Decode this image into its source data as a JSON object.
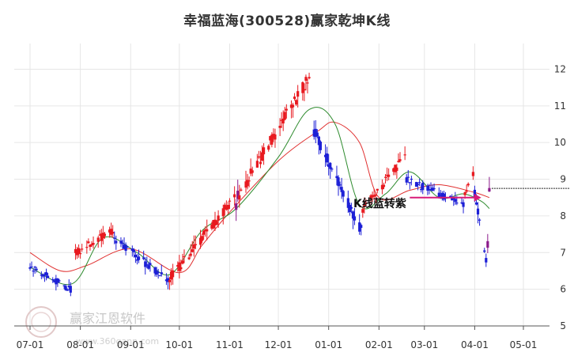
{
  "title": "幸福蓝海(300528)赢家乾坤K线",
  "watermark": {
    "text": "赢家江恩软件",
    "url": "www.360gann.com"
  },
  "colors": {
    "up": "#e8191f",
    "down": "#1c1fd6",
    "turn": "#8b1a8b",
    "ma_short": "#2e8b2e",
    "ma_long": "#e03030",
    "arrow": "#d81b79",
    "grid": "#e6e6e6"
  },
  "chart_data": {
    "type": "candlestick",
    "title": "幸福蓝海(300528)赢家乾坤K线",
    "x_ticks": [
      "07-01",
      "08-01",
      "09-01",
      "10-01",
      "11-01",
      "12-01",
      "01-01",
      "02-01",
      "03-01",
      "04-01",
      "05-01"
    ],
    "y_ticks": [
      5,
      6,
      7,
      8,
      9,
      10,
      11,
      12
    ],
    "ylim": [
      5,
      12.7
    ],
    "grid": true,
    "annotation": "K线蓝转紫",
    "reference_level": 8.75,
    "segments": [
      {
        "color": "down",
        "from": "07-01",
        "to": "07-26",
        "start": 6.65,
        "end": 6.0
      },
      {
        "color": "turn",
        "from": "07-27",
        "to": "07-28",
        "start": 6.2,
        "end": 7.1
      },
      {
        "color": "up",
        "from": "07-29",
        "to": "08-21",
        "start": 7.0,
        "end": 7.6
      },
      {
        "color": "down",
        "from": "08-22",
        "to": "09-24",
        "start": 7.4,
        "end": 6.2
      },
      {
        "color": "up",
        "from": "09-25",
        "to": "11-04",
        "start": 6.3,
        "end": 8.5
      },
      {
        "color": "turn",
        "from": "11-05",
        "to": "11-06",
        "start": 8.3,
        "end": 8.6
      },
      {
        "color": "up",
        "from": "11-07",
        "to": "12-20",
        "start": 8.6,
        "end": 11.8
      },
      {
        "color": "down",
        "from": "12-21",
        "to": "01-21",
        "start": 10.5,
        "end": 7.6
      },
      {
        "color": "up",
        "from": "01-22",
        "to": "02-17",
        "start": 8.2,
        "end": 9.6
      },
      {
        "color": "down",
        "from": "02-18",
        "to": "03-25",
        "start": 9.0,
        "end": 8.3
      },
      {
        "color": "up",
        "from": "03-26",
        "to": "03-31",
        "start": 8.6,
        "end": 9.1
      },
      {
        "color": "down",
        "from": "04-01",
        "to": "04-08",
        "start": 8.6,
        "end": 6.85
      },
      {
        "color": "turn",
        "from": "04-09",
        "to": "04-10",
        "start": 7.2,
        "end": 8.75
      }
    ],
    "ma_short_anchors": [
      [
        "07-01",
        6.6
      ],
      [
        "07-27",
        6.15
      ],
      [
        "08-15",
        7.4
      ],
      [
        "09-05",
        7.0
      ],
      [
        "09-25",
        6.4
      ],
      [
        "10-15",
        7.6
      ],
      [
        "11-05",
        8.2
      ],
      [
        "12-01",
        9.6
      ],
      [
        "12-20",
        10.9
      ],
      [
        "01-05",
        10.5
      ],
      [
        "01-20",
        8.3
      ],
      [
        "02-05",
        8.6
      ],
      [
        "02-20",
        9.2
      ],
      [
        "03-10",
        8.5
      ],
      [
        "03-25",
        8.6
      ],
      [
        "04-05",
        8.4
      ],
      [
        "04-10",
        8.2
      ]
    ],
    "ma_long_anchors": [
      [
        "07-01",
        7.0
      ],
      [
        "07-20",
        6.5
      ],
      [
        "08-05",
        6.65
      ],
      [
        "09-01",
        7.1
      ],
      [
        "10-01",
        6.45
      ],
      [
        "10-15",
        7.2
      ],
      [
        "11-01",
        8.1
      ],
      [
        "12-01",
        9.5
      ],
      [
        "12-25",
        10.3
      ],
      [
        "01-05",
        10.55
      ],
      [
        "01-20",
        10.0
      ],
      [
        "02-01",
        8.5
      ],
      [
        "02-20",
        8.7
      ],
      [
        "03-10",
        8.85
      ],
      [
        "03-31",
        8.65
      ],
      [
        "04-10",
        8.5
      ]
    ],
    "arrow": {
      "from": [
        "02-20",
        8.5
      ],
      "to": [
        "04-05",
        8.5
      ]
    }
  }
}
